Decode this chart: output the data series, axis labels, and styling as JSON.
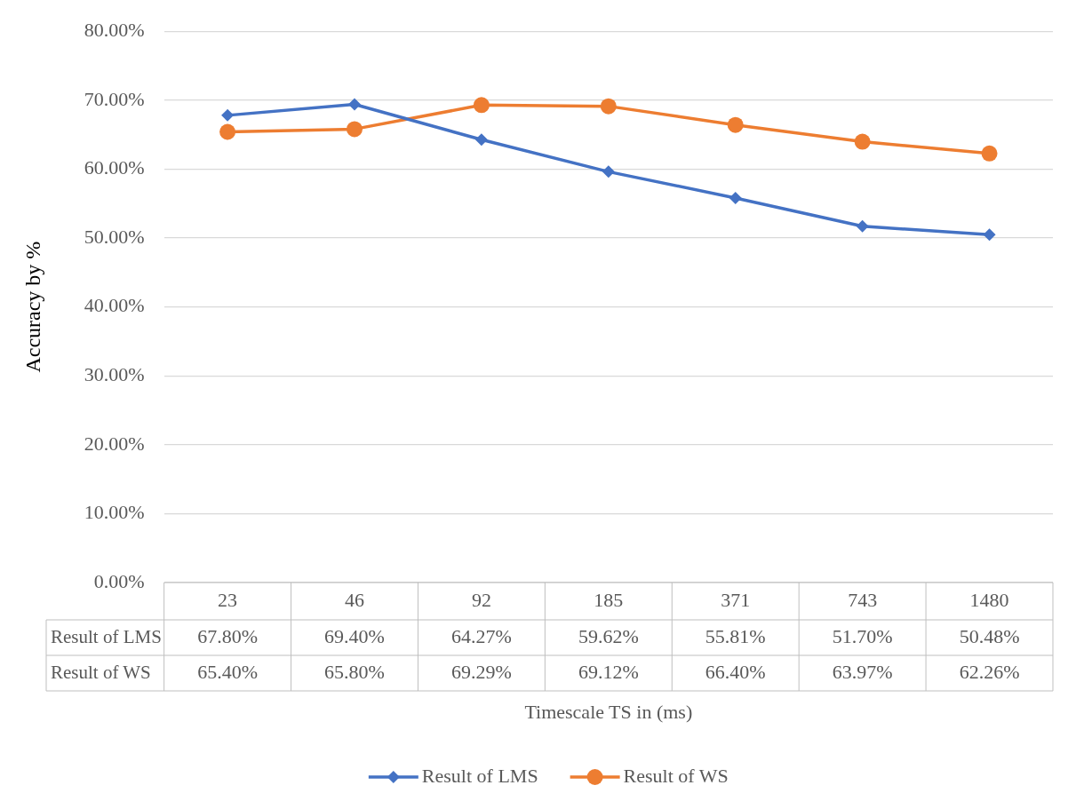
{
  "chart_data": {
    "type": "line",
    "xlabel": "Timescale TS in (ms)",
    "ylabel": "Accuracy by %",
    "categories": [
      "23",
      "46",
      "92",
      "185",
      "371",
      "743",
      "1480"
    ],
    "series": [
      {
        "name": "Result of LMS",
        "color": "#4472c4",
        "marker": "diamond",
        "values": [
          67.8,
          69.4,
          64.27,
          59.62,
          55.81,
          51.7,
          50.48
        ],
        "value_labels": [
          "67.80%",
          "69.40%",
          "64.27%",
          "59.62%",
          "55.81%",
          "51.70%",
          "50.48%"
        ]
      },
      {
        "name": "Result of WS",
        "color": "#ed7d31",
        "marker": "circle",
        "values": [
          65.4,
          65.8,
          69.29,
          69.12,
          66.4,
          63.97,
          62.26
        ],
        "value_labels": [
          "65.40%",
          "65.80%",
          "69.29%",
          "69.12%",
          "66.40%",
          "63.97%",
          "62.26%"
        ]
      }
    ],
    "ylim": [
      0,
      80
    ],
    "yticks": [
      {
        "value": 0,
        "label": "0.00%"
      },
      {
        "value": 10,
        "label": "10.00%"
      },
      {
        "value": 20,
        "label": "20.00%"
      },
      {
        "value": 30,
        "label": "30.00%"
      },
      {
        "value": 40,
        "label": "40.00%"
      },
      {
        "value": 50,
        "label": "50.00%"
      },
      {
        "value": 60,
        "label": "60.00%"
      },
      {
        "value": 70,
        "label": "70.00%"
      },
      {
        "value": 80,
        "label": "80.00%"
      }
    ],
    "grid": "y",
    "legend": "bottom"
  }
}
